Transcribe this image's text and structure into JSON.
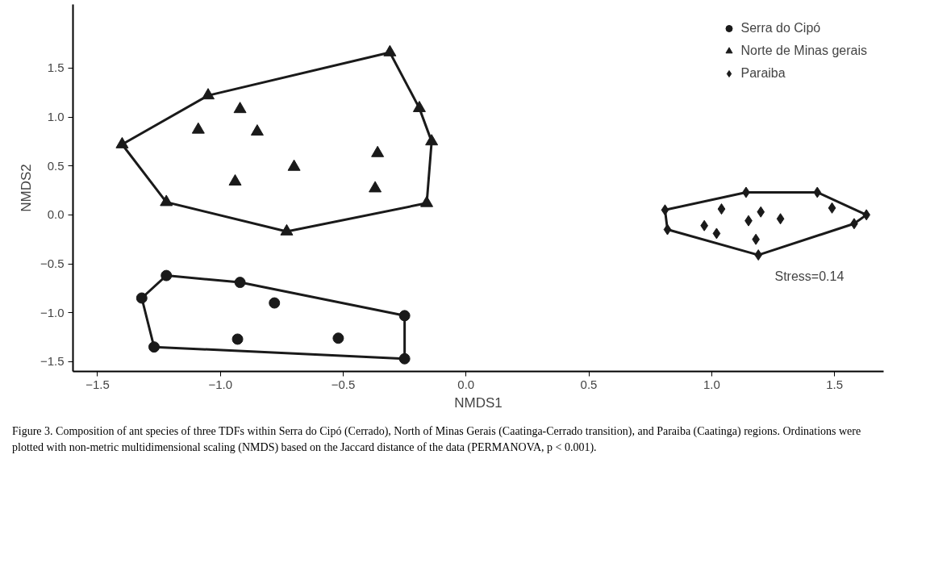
{
  "chart_data": {
    "type": "scatter",
    "xlabel": "NMDS1",
    "ylabel": "NMDS2",
    "xlim": [
      -1.6,
      1.7
    ],
    "ylim": [
      -1.6,
      2.15
    ],
    "xticks": [
      {
        "value": -1.5,
        "label": "−1.5"
      },
      {
        "value": -1.0,
        "label": "−1.0"
      },
      {
        "value": -0.5,
        "label": "−0.5"
      },
      {
        "value": 0,
        "label": "0.0"
      },
      {
        "value": 0.5,
        "label": "0.5"
      },
      {
        "value": 1.0,
        "label": "1.0"
      },
      {
        "value": 1.5,
        "label": "1.5"
      }
    ],
    "yticks": [
      {
        "value": -1.5,
        "label": "−1.5"
      },
      {
        "value": -1.0,
        "label": "−1.0"
      },
      {
        "value": -0.5,
        "label": "−0.5"
      },
      {
        "value": 0,
        "label": "0.0"
      },
      {
        "value": 0.5,
        "label": "0.5"
      },
      {
        "value": 1.0,
        "label": "1.0"
      },
      {
        "value": 1.5,
        "label": "1.5"
      }
    ],
    "grid": false,
    "legend": "top right",
    "series": [
      {
        "name": "Serra do Cipó",
        "color": "#1a1a1a",
        "marker": "circle",
        "x": [
          -1.22,
          -0.92,
          -1.32,
          -0.78,
          -0.25,
          -0.93,
          -0.52,
          -1.27,
          -0.25
        ],
        "values": [
          -0.62,
          -0.69,
          -0.85,
          -0.9,
          -1.03,
          -1.27,
          -1.26,
          -1.35,
          -1.47
        ]
      },
      {
        "name": "Norte de Minas gerais",
        "color": "#1a1a1a",
        "marker": "triangle",
        "x": [
          -1.4,
          -1.05,
          -0.31,
          -0.19,
          -0.14,
          -0.16,
          -0.73,
          -1.22,
          -1.09,
          -0.92,
          -0.85,
          -0.94,
          -0.7,
          -0.36,
          -0.37
        ],
        "values": [
          0.72,
          1.22,
          1.66,
          1.09,
          0.75,
          0.12,
          -0.17,
          0.13,
          0.87,
          1.08,
          0.85,
          0.34,
          0.49,
          0.63,
          0.27
        ]
      },
      {
        "name": "Paraiba",
        "color": "#1a1a1a",
        "marker": "diamond",
        "x": [
          0.81,
          1.14,
          1.43,
          1.63,
          1.58,
          1.19,
          0.82,
          1.04,
          1.49,
          1.2,
          1.15,
          1.28,
          0.97,
          1.02,
          1.18
        ],
        "values": [
          0.05,
          0.23,
          0.23,
          0.0,
          -0.09,
          -0.41,
          -0.15,
          0.06,
          0.07,
          0.03,
          -0.06,
          -0.04,
          -0.11,
          -0.19,
          -0.25
        ]
      },
      {
        "type": "line",
        "color": "#1a1a1a",
        "x": [
          -1.32,
          -1.22,
          -0.92,
          -0.25
        ],
        "values": [
          -0.85,
          -0.62,
          -0.69,
          -1.03
        ]
      },
      {
        "type": "line",
        "color": "#1a1a1a",
        "x": [
          -1.32,
          -1.27,
          -0.25,
          -0.25
        ],
        "values": [
          -0.85,
          -1.35,
          -1.47,
          -1.03
        ]
      },
      {
        "type": "line",
        "color": "#1a1a1a",
        "x": [
          -1.4,
          -1.05,
          -0.31,
          -0.19,
          -0.14
        ],
        "values": [
          0.72,
          1.22,
          1.66,
          1.09,
          0.75
        ]
      },
      {
        "type": "line",
        "color": "#1a1a1a",
        "x": [
          -1.4,
          -1.22,
          -0.73,
          -0.16,
          -0.14
        ],
        "values": [
          0.72,
          0.13,
          -0.17,
          0.12,
          0.75
        ]
      },
      {
        "type": "line",
        "color": "#1a1a1a",
        "x": [
          0.81,
          1.14,
          1.43,
          1.63
        ],
        "values": [
          0.05,
          0.23,
          0.23,
          0.0
        ]
      },
      {
        "type": "line",
        "color": "#1a1a1a",
        "x": [
          0.81,
          0.82,
          1.19,
          1.58,
          1.63
        ],
        "values": [
          0.05,
          -0.15,
          -0.41,
          -0.09,
          0.0
        ]
      }
    ],
    "annotations": [
      "Stress=0.14",
      "Figure 3. Composition of ant species of three TDFs within Serra do Cipó (Cerrado), North of Minas Gerais (Caatinga-Cerrado transition), and Paraiba (Caatinga) regions. Ordinations were plotted with non-metric multidimensional scaling (NMDS) based on the Jaccard distance of the data (PERMANOVA, p < 0.001)."
    ]
  }
}
